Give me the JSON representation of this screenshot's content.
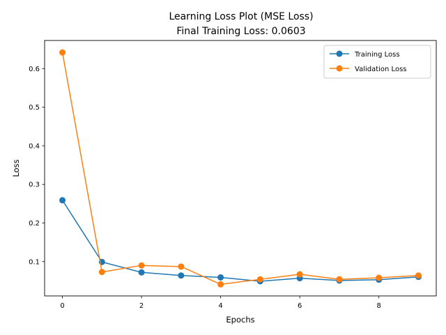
{
  "chart_data": {
    "type": "line",
    "title": "Learning Loss Plot (MSE Loss)",
    "subtitle": "Final Training Loss: 0.0603",
    "xlabel": "Epochs",
    "ylabel": "Loss",
    "xlim": [
      -0.45,
      9.45
    ],
    "ylim": [
      0.011,
      0.673
    ],
    "xticks": [
      0,
      2,
      4,
      6,
      8
    ],
    "yticks": [
      0.1,
      0.2,
      0.3,
      0.4,
      0.5,
      0.6
    ],
    "x": [
      0,
      1,
      2,
      3,
      4,
      5,
      6,
      7,
      8,
      9
    ],
    "series": [
      {
        "name": "Training Loss",
        "color": "#1f77b4",
        "marker": "circle",
        "values": [
          0.259,
          0.099,
          0.072,
          0.064,
          0.059,
          0.049,
          0.057,
          0.051,
          0.053,
          0.0603
        ]
      },
      {
        "name": "Validation Loss",
        "color": "#ff7f0e",
        "marker": "circle",
        "values": [
          0.642,
          0.073,
          0.09,
          0.087,
          0.041,
          0.054,
          0.067,
          0.054,
          0.058,
          0.064
        ]
      }
    ],
    "grid": false,
    "legend": "top-right"
  }
}
